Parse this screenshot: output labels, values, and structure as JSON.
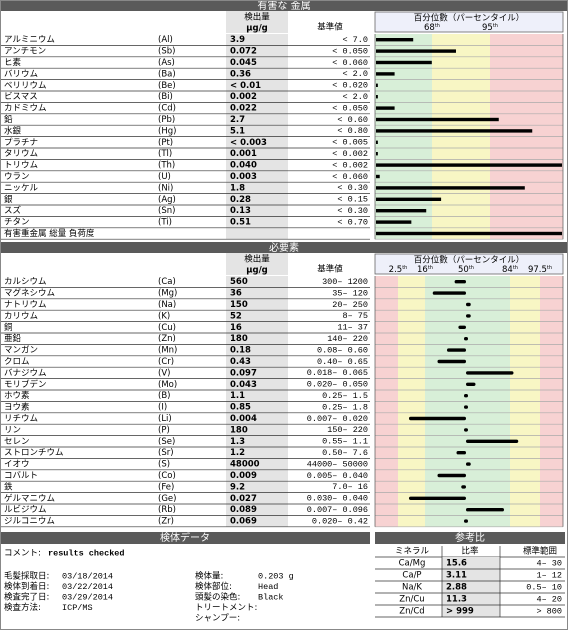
{
  "toxic": {
    "title": "有害な 金属",
    "amount": "検出量",
    "unit": "µg/g",
    "reference": "基準値",
    "percentile": "百分位數（パーセンタイル）",
    "marks": [
      {
        "n": "68",
        "s": "th"
      },
      {
        "n": "95",
        "s": "th"
      }
    ],
    "rows": [
      {
        "name": "アルミニウム",
        "symbol": "(Al)",
        "value": "3.9",
        "reference": "< 7.0",
        "bar": 20
      },
      {
        "name": "アンチモン",
        "symbol": "(Sb)",
        "value": "0.072",
        "reference": "< 0.050",
        "bar": 43
      },
      {
        "name": "ヒ素",
        "symbol": "(As)",
        "value": "0.045",
        "reference": "< 0.060",
        "bar": 30
      },
      {
        "name": "バリウム",
        "symbol": "(Ba)",
        "value": "0.36",
        "reference": "< 2.0",
        "bar": 10
      },
      {
        "name": "ベリリウム",
        "symbol": "(Be)",
        "value": "< 0.01",
        "reference": "< 0.020",
        "bar": 1
      },
      {
        "name": "ビスマス",
        "symbol": "(Bi)",
        "value": "0.002",
        "reference": "< 2.0",
        "bar": 1
      },
      {
        "name": "カドミウム",
        "symbol": "(Cd)",
        "value": "0.022",
        "reference": "< 0.050",
        "bar": 10
      },
      {
        "name": "鉛",
        "symbol": "(Pb)",
        "value": "2.7",
        "reference": "< 0.60",
        "bar": 66
      },
      {
        "name": "水銀",
        "symbol": "(Hg)",
        "value": "5.1",
        "reference": "< 0.80",
        "bar": 84
      },
      {
        "name": "プラチナ",
        "symbol": "(Pt)",
        "value": "< 0.003",
        "reference": "< 0.005",
        "bar": 1
      },
      {
        "name": "タリウム",
        "symbol": "(Tl)",
        "value": "0.001",
        "reference": "< 0.002",
        "bar": 1
      },
      {
        "name": "トリウム",
        "symbol": "(Th)",
        "value": "0.040",
        "reference": "< 0.002",
        "bar": 100
      },
      {
        "name": "ウラン",
        "symbol": "(U)",
        "value": "0.003",
        "reference": "< 0.060",
        "bar": 2
      },
      {
        "name": "ニッケル",
        "symbol": "(Ni)",
        "value": "1.8",
        "reference": "< 0.30",
        "bar": 80
      },
      {
        "name": "銀",
        "symbol": "(Ag)",
        "value": "0.28",
        "reference": "< 0.15",
        "bar": 35
      },
      {
        "name": "スズ",
        "symbol": "(Sn)",
        "value": "0.13",
        "reference": "< 0.30",
        "bar": 27
      },
      {
        "name": "チタン",
        "symbol": "(Ti)",
        "value": "0.51",
        "reference": "< 0.70",
        "bar": 19
      },
      {
        "name": "有害重金属 総量 負荷度",
        "bar": 100
      }
    ]
  },
  "essential": {
    "title": "必要素",
    "amount": "検出量",
    "unit": "µg/g",
    "reference": "基準値",
    "percentile": "百分位數（パーセンタイル）",
    "marks": [
      {
        "n": "2.5",
        "s": "th"
      },
      {
        "n": "16",
        "s": "th"
      },
      {
        "n": "50",
        "s": "th"
      },
      {
        "n": "84",
        "s": "th"
      },
      {
        "n": "97.5",
        "s": "th"
      }
    ],
    "rows": [
      {
        "name": "カルシウム",
        "symbol": "(Ca)",
        "value": "560",
        "reference": "300–  1200",
        "bar": -12
      },
      {
        "name": "マグネシウム",
        "symbol": "(Mg)",
        "value": "36",
        "reference": "35–  120",
        "bar": -35
      },
      {
        "name": "ナトリウム",
        "symbol": "(Na)",
        "value": "150",
        "reference": "20–  250",
        "bar": 5
      },
      {
        "name": "カリウム",
        "symbol": "(K)",
        "value": "52",
        "reference": "8–  75",
        "bar": 5
      },
      {
        "name": "銅",
        "symbol": "(Cu)",
        "value": "16",
        "reference": "11–  37",
        "bar": -8
      },
      {
        "name": "亜鉛",
        "symbol": "(Zn)",
        "value": "180",
        "reference": "140–  220",
        "bar": 0
      },
      {
        "name": "マンガン",
        "symbol": "(Mn)",
        "value": "0.18",
        "reference": "0.08–  0.60",
        "bar": -20
      },
      {
        "name": "クロム",
        "symbol": "(Cr)",
        "value": "0.43",
        "reference": "0.40–  0.65",
        "bar": -30
      },
      {
        "name": "バナジウム",
        "symbol": "(V)",
        "value": "0.097",
        "reference": "0.018–  0.065",
        "bar": 50
      },
      {
        "name": "モリブデン",
        "symbol": "(Mo)",
        "value": "0.043",
        "reference": "0.020–  0.050",
        "bar": 10
      },
      {
        "name": "ホウ素",
        "symbol": "(B)",
        "value": "1.1",
        "reference": "0.25–  1.5",
        "bar": 3
      },
      {
        "name": "ヨウ素",
        "symbol": "(I)",
        "value": "0.85",
        "reference": "0.25–  1.8",
        "bar": 0
      },
      {
        "name": "リチウム",
        "symbol": "(Li)",
        "value": "0.004",
        "reference": "0.007–  0.020",
        "bar": -60
      },
      {
        "name": "リン",
        "symbol": "(P)",
        "value": "180",
        "reference": "150–  220",
        "bar": 0
      },
      {
        "name": "セレン",
        "symbol": "(Se)",
        "value": "1.3",
        "reference": "0.55–  1.1",
        "bar": 55
      },
      {
        "name": "ストロンチウム",
        "symbol": "(Sr)",
        "value": "1.2",
        "reference": "0.50–  7.6",
        "bar": -10
      },
      {
        "name": "イオウ",
        "symbol": "(S)",
        "value": "48000",
        "reference": "44000–  50000",
        "bar": 5
      },
      {
        "name": "コバルト",
        "symbol": "(Co)",
        "value": "0.009",
        "reference": "0.005–  0.040",
        "bar": -30
      },
      {
        "name": "鉄",
        "symbol": "(Fe)",
        "value": "9.2",
        "reference": "7.0–  16",
        "bar": -5
      },
      {
        "name": "ゲルマニウム",
        "symbol": "(Ge)",
        "value": "0.027",
        "reference": "0.030–  0.040",
        "bar": -60
      },
      {
        "name": "ルビジウム",
        "symbol": "(Rb)",
        "value": "0.089",
        "reference": "0.007–  0.096",
        "bar": 40
      },
      {
        "name": "ジルコニウム",
        "symbol": "(Zr)",
        "value": "0.069",
        "reference": "0.020–  0.42",
        "bar": -3
      }
    ]
  },
  "specimen": {
    "title": "検体データ",
    "comment": {
      "label": "コメント:",
      "value": "results checked"
    },
    "left": [
      {
        "label": "毛髪採取日:",
        "value": "03/18/2014"
      },
      {
        "label": "検体到着日:",
        "value": "03/22/2014"
      },
      {
        "label": "検査完了日:",
        "value": "03/29/2014"
      },
      {
        "label": "検査方法:",
        "value": "ICP/MS"
      }
    ],
    "right": [
      {
        "label": "検体量:",
        "value": "0.203 g"
      },
      {
        "label": "検体部位:",
        "value": "Head"
      },
      {
        "label": "頭髪の染色:",
        "value": "Black"
      },
      {
        "label": "トリートメント:",
        "value": ""
      },
      {
        "label": "シャンプー:",
        "value": ""
      }
    ]
  },
  "ratios": {
    "title": "参考比",
    "headers": [
      "ミネラル",
      "比率",
      "標準範囲"
    ],
    "rows": [
      [
        "Ca/Mg",
        "15.6",
        "4–  30"
      ],
      [
        "Ca/P",
        "3.11",
        "1–  12"
      ],
      [
        "Na/K",
        "2.88",
        "0.5–  10"
      ],
      [
        "Zn/Cu",
        "11.3",
        "4–  20"
      ],
      [
        "Zn/Cd",
        "> 999",
        ">  800"
      ]
    ]
  }
}
